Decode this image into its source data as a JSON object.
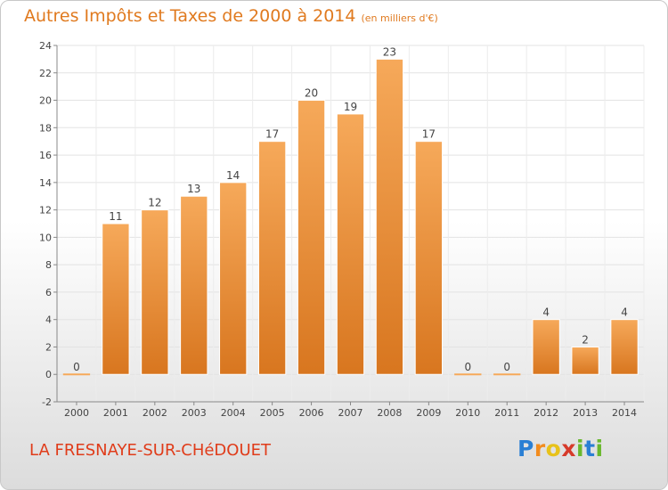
{
  "header": {
    "title": "Autres Impôts et Taxes de 2000 à 2014",
    "unit": "(en milliers d'€)"
  },
  "footer": {
    "commune": "LA FRESNAYE-SUR-CHéDOUET",
    "logo_letters": [
      "P",
      "r",
      "o",
      "x",
      "i",
      "t",
      "i"
    ],
    "logo_colors": [
      "#2a7fd4",
      "#f28c1e",
      "#e8c21a",
      "#d63a2a",
      "#6ab82e",
      "#2a7fd4",
      "#6ab82e"
    ]
  },
  "colors": {
    "bar_top": "#f6a95a",
    "bar_bottom": "#d8761f",
    "bar_edge": "#ffffff",
    "title": "#e07a1f",
    "commune": "#e03c1a"
  },
  "chart_data": {
    "type": "bar",
    "title": "Autres Impôts et Taxes de 2000 à 2014",
    "subtitle": "(en milliers d'€)",
    "categories": [
      "2000",
      "2001",
      "2002",
      "2003",
      "2004",
      "2005",
      "2006",
      "2007",
      "2008",
      "2009",
      "2010",
      "2011",
      "2012",
      "2013",
      "2014"
    ],
    "values": [
      0,
      11,
      12,
      13,
      14,
      17,
      20,
      19,
      23,
      17,
      0,
      0,
      4,
      2,
      4
    ],
    "ylim": [
      -2,
      24
    ],
    "yticks": [
      -2,
      0,
      2,
      4,
      6,
      8,
      10,
      12,
      14,
      16,
      18,
      20,
      22,
      24
    ],
    "grid": true,
    "xlabel": "",
    "ylabel": ""
  }
}
